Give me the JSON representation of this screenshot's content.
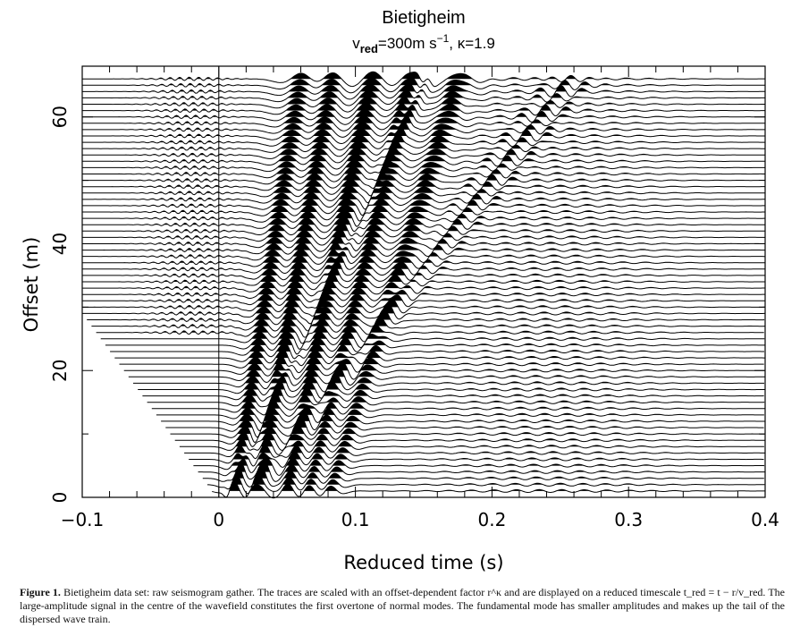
{
  "chart_data": {
    "type": "line",
    "title": "Bietigheim",
    "subtitle": {
      "v": "v",
      "v_sub": "red",
      "equals_value": "=300m  s",
      "exp": "−1",
      "kappa_part": ",  κ=1.9"
    },
    "xlabel": "Reduced time (s)",
    "ylabel": "Offset (m)",
    "xlim": [
      -0.1,
      0.4
    ],
    "ylim": [
      0,
      68
    ],
    "x_ticks": [
      {
        "value": -0.1,
        "label": "−0.1"
      },
      {
        "value": 0,
        "label": "0"
      },
      {
        "value": 0.1,
        "label": "0.1"
      },
      {
        "value": 0.2,
        "label": "0.2"
      },
      {
        "value": 0.3,
        "label": "0.3"
      },
      {
        "value": 0.4,
        "label": "0.4"
      }
    ],
    "y_ticks": [
      {
        "value": 0,
        "label": "0"
      },
      {
        "value": 20,
        "label": "20"
      },
      {
        "value": 40,
        "label": "40"
      },
      {
        "value": 60,
        "label": "60"
      }
    ],
    "x_minor_step": 0.02,
    "y_minor_step": 10,
    "reference_line_x": 0,
    "traces": {
      "offset_first": 1,
      "offset_last": 66,
      "offset_step": 1,
      "start_time_min": 0,
      "start_time_at_first_offset": -0.005,
      "start_offset_max": 29,
      "end_time": 0.4,
      "fill": "positive",
      "color": "#000000"
    },
    "grid": false
  },
  "caption": {
    "label": "Figure 1.",
    "text": "Bietigheim data set: raw seismogram gather. The traces are scaled with an offset-dependent factor r^κ and are displayed on a reduced timescale t_red = t − r/v_red. The large-amplitude signal in the centre of the wavefield constitutes the first overtone of normal modes. The fundamental mode has smaller amplitudes and makes up the tail of the dispersed wave train."
  }
}
